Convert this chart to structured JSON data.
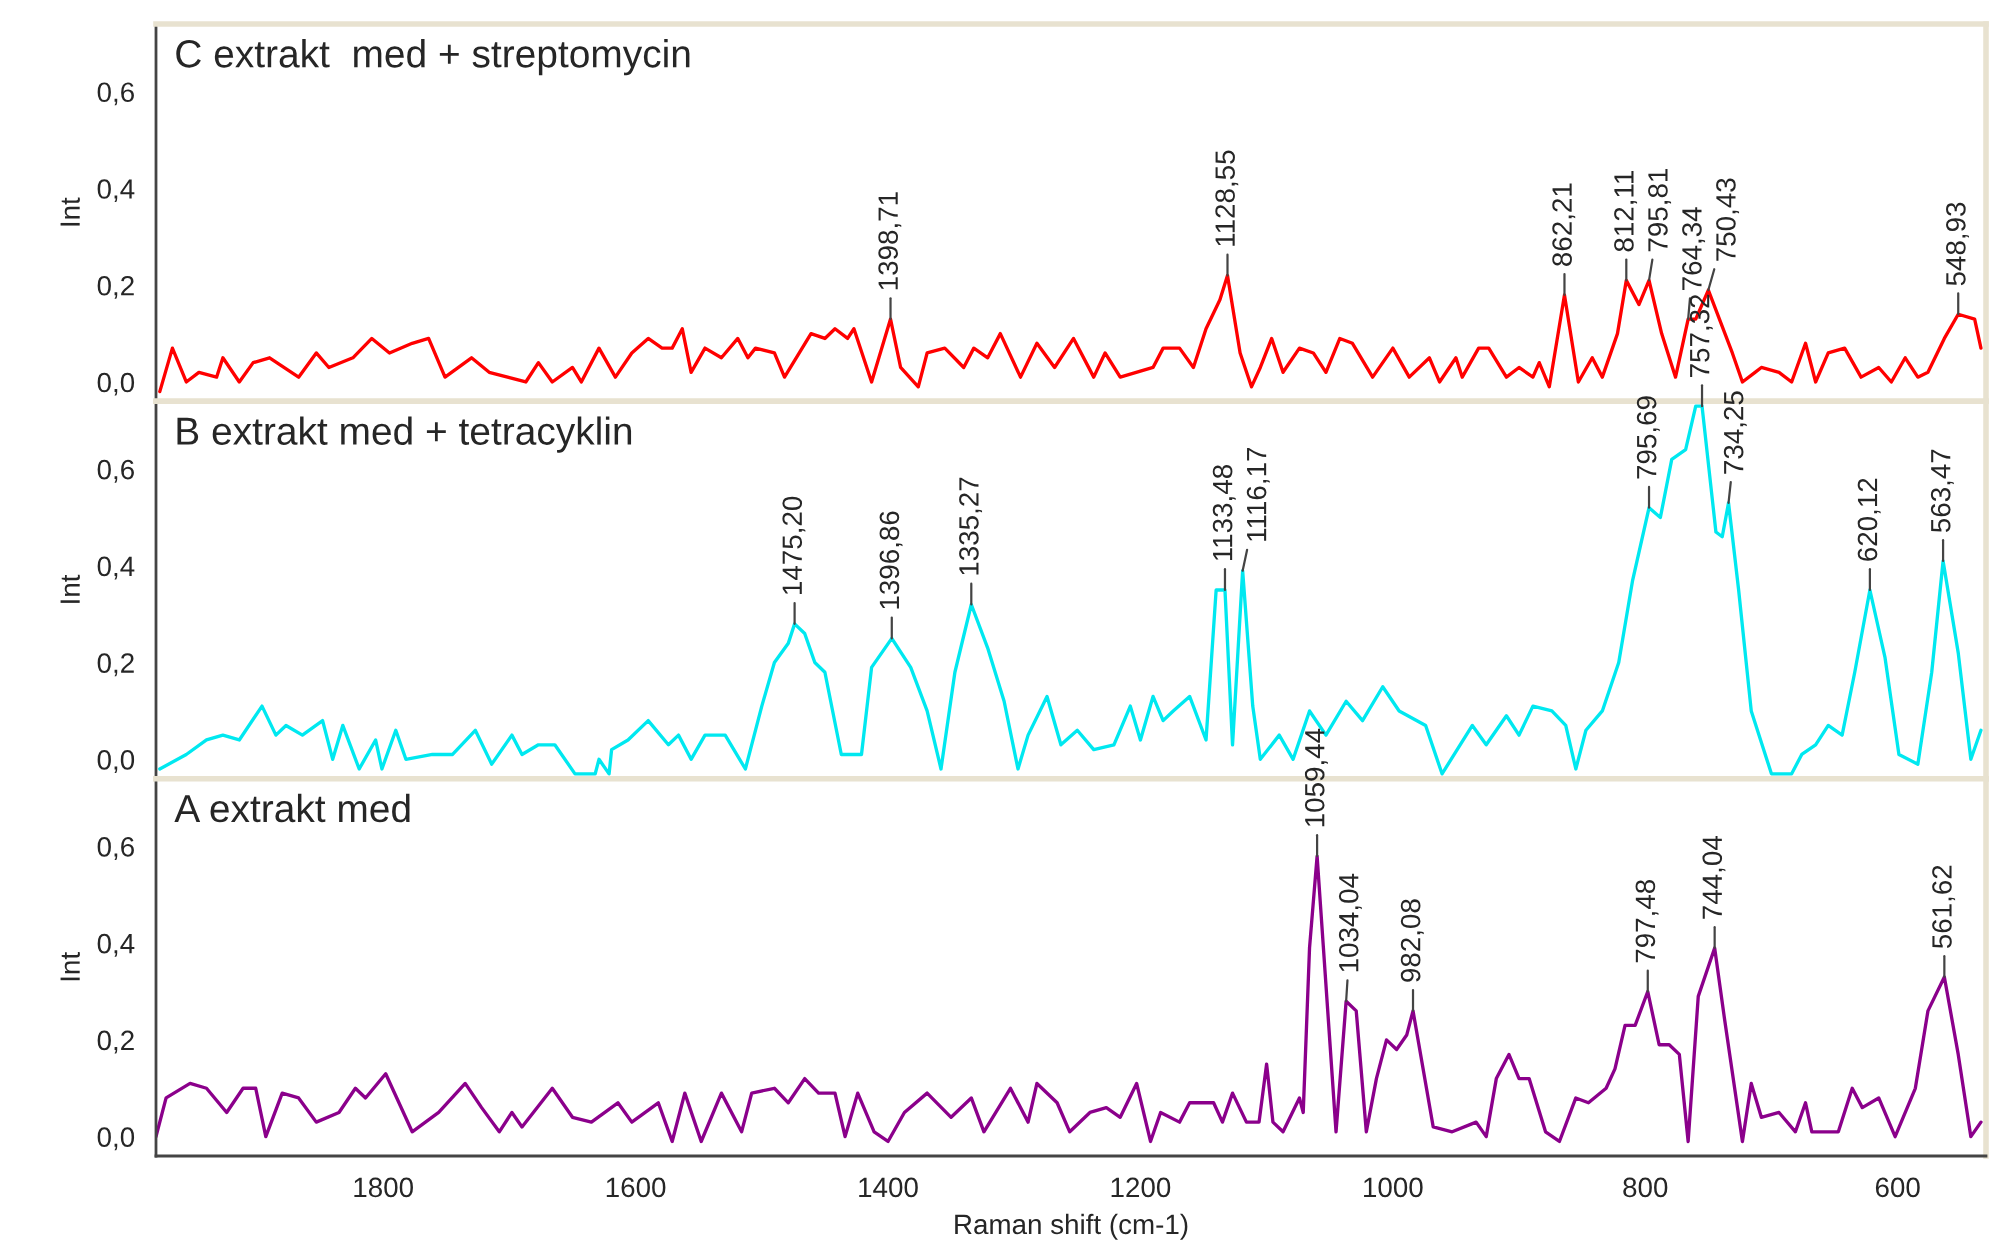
{
  "chart_data": [
    {
      "type": "line",
      "title": "C extrakt  med + streptomycin",
      "ylabel": "Int",
      "xlim": [
        1980,
        530
      ],
      "xticks": [
        1800,
        1600,
        1400,
        1200,
        1000,
        800,
        600
      ],
      "ylim": [
        -0.04,
        0.74
      ],
      "yticks": [
        {
          "value": 0,
          "label": "0,0"
        },
        {
          "value": 0.2,
          "label": "0,2"
        },
        {
          "value": 0.4,
          "label": "0,4"
        },
        {
          "value": 0.6,
          "label": "0,6"
        }
      ],
      "tick_labels": "y",
      "grid": false,
      "x": [
        1977,
        1967,
        1956,
        1946,
        1932,
        1927,
        1914,
        1903,
        1890,
        1867,
        1853,
        1843,
        1824,
        1809,
        1795,
        1777,
        1764,
        1751,
        1730,
        1716,
        1687,
        1677,
        1666,
        1650,
        1643,
        1629,
        1616,
        1603,
        1590,
        1579,
        1571,
        1563,
        1556,
        1545,
        1532,
        1519,
        1511,
        1505,
        1490,
        1482,
        1461,
        1450,
        1442,
        1432,
        1427,
        1413,
        1398,
        1390,
        1376,
        1369,
        1355,
        1340,
        1332,
        1321,
        1311,
        1295,
        1282,
        1268,
        1253,
        1237,
        1228,
        1216,
        1190,
        1182,
        1169,
        1158,
        1148,
        1137,
        1131,
        1121,
        1112,
        1105,
        1096,
        1087,
        1074,
        1063,
        1053,
        1042,
        1032,
        1016,
        1000,
        987,
        971,
        963,
        950,
        945,
        932,
        924,
        910,
        900,
        889,
        884,
        876,
        864,
        853,
        842,
        834,
        822,
        815,
        805,
        797,
        787,
        776,
        766,
        760,
        750,
        731,
        723,
        713,
        708,
        694,
        684,
        673,
        665,
        655,
        642,
        629,
        615,
        605,
        594,
        584,
        576,
        563,
        552,
        539,
        534
      ],
      "series": [
        {
          "color": "#ff0000",
          "values": [
            -0.02,
            0.07,
            0.0,
            0.02,
            0.01,
            0.05,
            0.0,
            0.04,
            0.05,
            0.01,
            0.06,
            0.03,
            0.05,
            0.09,
            0.06,
            0.08,
            0.09,
            0.01,
            0.05,
            0.02,
            0.0,
            0.04,
            0.0,
            0.03,
            0.0,
            0.07,
            0.01,
            0.06,
            0.09,
            0.07,
            0.07,
            0.11,
            0.02,
            0.07,
            0.05,
            0.09,
            0.05,
            0.07,
            0.06,
            0.01,
            0.1,
            0.09,
            0.11,
            0.09,
            0.11,
            0.0,
            0.13,
            0.03,
            -0.01,
            0.06,
            0.07,
            0.03,
            0.07,
            0.05,
            0.1,
            0.01,
            0.08,
            0.03,
            0.09,
            0.01,
            0.06,
            0.01,
            0.03,
            0.07,
            0.07,
            0.03,
            0.11,
            0.17,
            0.22,
            0.06,
            -0.01,
            0.03,
            0.09,
            0.02,
            0.07,
            0.06,
            0.02,
            0.09,
            0.08,
            0.01,
            0.07,
            0.01,
            0.05,
            0.0,
            0.05,
            0.01,
            0.07,
            0.07,
            0.01,
            0.03,
            0.01,
            0.04,
            -0.01,
            0.18,
            0.0,
            0.05,
            0.01,
            0.1,
            0.21,
            0.16,
            0.21,
            0.1,
            0.01,
            0.13,
            0.13,
            0.19,
            0.06,
            0.0,
            0.02,
            0.03,
            0.02,
            0.0,
            0.08,
            0.0,
            0.06,
            0.07,
            0.01,
            0.03,
            0.0,
            0.05,
            0.01,
            0.02,
            0.09,
            0.14,
            0.13,
            0.07
          ]
        }
      ],
      "annotations": [
        {
          "text": "1398,71",
          "x": 1398,
          "y": 0.13
        },
        {
          "text": "1128,55",
          "x": 1131,
          "y": 0.22
        },
        {
          "text": "862,21",
          "x": 864,
          "y": 0.18
        },
        {
          "text": "812,11",
          "x": 815,
          "y": 0.21
        },
        {
          "text": "795,81",
          "x": 797,
          "y": 0.21
        },
        {
          "text": "764,34",
          "x": 766,
          "y": 0.13
        },
        {
          "text": "750,43",
          "x": 750,
          "y": 0.19
        },
        {
          "text": "548,93",
          "x": 552,
          "y": 0.14
        }
      ]
    },
    {
      "type": "line",
      "title": "B extrakt med + tetracyklin",
      "ylabel": "Int",
      "xlim": [
        1980,
        530
      ],
      "xticks": [
        1800,
        1600,
        1400,
        1200,
        1000,
        800,
        600
      ],
      "ylim": [
        -0.04,
        0.74
      ],
      "yticks": [
        {
          "value": 0,
          "label": "0,0"
        },
        {
          "value": 0.2,
          "label": "0,2"
        },
        {
          "value": 0.4,
          "label": "0,4"
        },
        {
          "value": 0.6,
          "label": "0,6"
        }
      ],
      "tick_labels": "y",
      "grid": false,
      "x": [
        1977,
        1956,
        1940,
        1927,
        1914,
        1896,
        1885,
        1877,
        1864,
        1848,
        1840,
        1832,
        1819,
        1806,
        1801,
        1790,
        1782,
        1761,
        1745,
        1727,
        1714,
        1698,
        1690,
        1677,
        1664,
        1648,
        1632,
        1629,
        1621,
        1619,
        1606,
        1590,
        1574,
        1566,
        1556,
        1545,
        1529,
        1513,
        1500,
        1490,
        1479,
        1474,
        1466,
        1458,
        1450,
        1437,
        1421,
        1413,
        1397,
        1382,
        1369,
        1358,
        1347,
        1334,
        1321,
        1308,
        1297,
        1289,
        1274,
        1263,
        1250,
        1237,
        1221,
        1208,
        1200,
        1190,
        1182,
        1174,
        1161,
        1148,
        1140,
        1133,
        1127,
        1119,
        1111,
        1105,
        1090,
        1079,
        1066,
        1053,
        1037,
        1024,
        1008,
        995,
        974,
        961,
        937,
        926,
        910,
        900,
        889,
        874,
        863,
        855,
        847,
        834,
        821,
        810,
        797,
        788,
        779,
        768,
        760,
        755,
        744,
        739,
        734,
        726,
        716,
        700,
        684,
        676,
        665,
        655,
        644,
        634,
        622,
        610,
        599,
        584,
        573,
        564,
        552,
        542,
        534
      ],
      "series": [
        {
          "color": "#00e8f0",
          "values": [
            -0.02,
            0.01,
            0.04,
            0.05,
            0.04,
            0.11,
            0.05,
            0.07,
            0.05,
            0.08,
            0.0,
            0.07,
            -0.02,
            0.04,
            -0.02,
            0.06,
            0.0,
            0.01,
            0.01,
            0.06,
            -0.01,
            0.05,
            0.01,
            0.03,
            0.03,
            -0.03,
            -0.03,
            0.0,
            -0.03,
            0.02,
            0.04,
            0.08,
            0.03,
            0.05,
            0.0,
            0.05,
            0.05,
            -0.02,
            0.11,
            0.2,
            0.24,
            0.28,
            0.26,
            0.2,
            0.18,
            0.01,
            0.01,
            0.19,
            0.25,
            0.19,
            0.1,
            -0.02,
            0.18,
            0.32,
            0.23,
            0.12,
            -0.02,
            0.05,
            0.13,
            0.03,
            0.06,
            0.02,
            0.03,
            0.11,
            0.04,
            0.13,
            0.08,
            0.1,
            0.13,
            0.04,
            0.35,
            0.35,
            0.03,
            0.39,
            0.11,
            0.0,
            0.05,
            0.0,
            0.1,
            0.05,
            0.12,
            0.08,
            0.15,
            0.1,
            0.07,
            -0.03,
            0.07,
            0.03,
            0.09,
            0.05,
            0.11,
            0.1,
            0.07,
            -0.02,
            0.06,
            0.1,
            0.2,
            0.37,
            0.52,
            0.5,
            0.62,
            0.64,
            0.73,
            0.73,
            0.47,
            0.46,
            0.53,
            0.35,
            0.1,
            -0.03,
            -0.03,
            0.01,
            0.03,
            0.07,
            0.05,
            0.18,
            0.35,
            0.21,
            0.01,
            -0.01,
            0.18,
            0.41,
            0.22,
            0.0,
            0.06
          ]
        }
      ],
      "annotations": [
        {
          "text": "1475,20",
          "x": 1474,
          "y": 0.28
        },
        {
          "text": "1396,86",
          "x": 1397,
          "y": 0.25
        },
        {
          "text": "1335,27",
          "x": 1334,
          "y": 0.32
        },
        {
          "text": "1133,48",
          "x": 1133,
          "y": 0.35
        },
        {
          "text": "1116,17",
          "x": 1119,
          "y": 0.39
        },
        {
          "text": "795,69",
          "x": 797,
          "y": 0.52
        },
        {
          "text": "757,32",
          "x": 755,
          "y": 0.73
        },
        {
          "text": "734,25",
          "x": 734,
          "y": 0.53
        },
        {
          "text": "620,12",
          "x": 622,
          "y": 0.35
        },
        {
          "text": "563,47",
          "x": 564,
          "y": 0.41
        }
      ]
    },
    {
      "type": "line",
      "title": "A extrakt med",
      "ylabel": "Int",
      "xlabel": "Raman shift (cm-1)",
      "xlim": [
        1980,
        530
      ],
      "xticks": [
        1800,
        1600,
        1400,
        1200,
        1000,
        800,
        600
      ],
      "ylim": [
        -0.04,
        0.74
      ],
      "yticks": [
        {
          "value": 0,
          "label": "0,0"
        },
        {
          "value": 0.2,
          "label": "0,2"
        },
        {
          "value": 0.4,
          "label": "0,4"
        },
        {
          "value": 0.6,
          "label": "0,6"
        }
      ],
      "grid": false,
      "x": [
        1980,
        1972,
        1953,
        1940,
        1924,
        1911,
        1901,
        1893,
        1880,
        1867,
        1853,
        1835,
        1822,
        1814,
        1798,
        1777,
        1756,
        1735,
        1722,
        1708,
        1698,
        1690,
        1666,
        1650,
        1635,
        1614,
        1603,
        1582,
        1571,
        1561,
        1548,
        1532,
        1516,
        1508,
        1490,
        1479,
        1466,
        1455,
        1442,
        1434,
        1424,
        1411,
        1400,
        1387,
        1369,
        1350,
        1334,
        1324,
        1303,
        1289,
        1282,
        1266,
        1256,
        1240,
        1227,
        1216,
        1203,
        1192,
        1184,
        1169,
        1161,
        1142,
        1135,
        1127,
        1116,
        1106,
        1100,
        1095,
        1087,
        1074,
        1071,
        1066,
        1060,
        1055,
        1045,
        1037,
        1029,
        1021,
        1013,
        1005,
        997,
        989,
        984,
        968,
        953,
        934,
        926,
        918,
        908,
        900,
        892,
        879,
        868,
        855,
        845,
        831,
        824,
        816,
        808,
        798,
        789,
        781,
        773,
        766,
        758,
        745,
        737,
        723,
        716,
        708,
        694,
        681,
        673,
        668,
        647,
        636,
        628,
        615,
        602,
        586,
        576,
        563,
        552,
        542,
        534
      ],
      "series": [
        {
          "color": "#8b008b",
          "values": [
            0.0,
            0.08,
            0.11,
            0.1,
            0.05,
            0.1,
            0.1,
            0.0,
            0.09,
            0.08,
            0.03,
            0.05,
            0.1,
            0.08,
            0.13,
            0.01,
            0.05,
            0.11,
            0.06,
            0.01,
            0.05,
            0.02,
            0.1,
            0.04,
            0.03,
            0.07,
            0.03,
            0.07,
            -0.01,
            0.09,
            -0.01,
            0.09,
            0.01,
            0.09,
            0.1,
            0.07,
            0.12,
            0.09,
            0.09,
            0.0,
            0.09,
            0.01,
            -0.01,
            0.05,
            0.09,
            0.04,
            0.08,
            0.01,
            0.1,
            0.03,
            0.11,
            0.07,
            0.01,
            0.05,
            0.06,
            0.04,
            0.11,
            -0.01,
            0.05,
            0.03,
            0.07,
            0.07,
            0.03,
            0.09,
            0.03,
            0.03,
            0.15,
            0.03,
            0.01,
            0.08,
            0.05,
            0.39,
            0.58,
            0.39,
            0.01,
            0.28,
            0.26,
            0.01,
            0.12,
            0.2,
            0.18,
            0.21,
            0.26,
            0.02,
            0.01,
            0.03,
            0.0,
            0.12,
            0.17,
            0.12,
            0.12,
            0.01,
            -0.01,
            0.08,
            0.07,
            0.1,
            0.14,
            0.23,
            0.23,
            0.3,
            0.19,
            0.19,
            0.17,
            -0.01,
            0.29,
            0.39,
            0.24,
            -0.01,
            0.11,
            0.04,
            0.05,
            0.01,
            0.07,
            0.01,
            0.01,
            0.1,
            0.06,
            0.08,
            0.0,
            0.1,
            0.26,
            0.33,
            0.17,
            0.0,
            0.03
          ]
        }
      ],
      "annotations": [
        {
          "text": "1059,44",
          "x": 1060,
          "y": 0.58
        },
        {
          "text": "1034,04",
          "x": 1037,
          "y": 0.28
        },
        {
          "text": "982,08",
          "x": 984,
          "y": 0.26
        },
        {
          "text": "797,48",
          "x": 798,
          "y": 0.3
        },
        {
          "text": "744,04",
          "x": 745,
          "y": 0.39
        },
        {
          "text": "561,62",
          "x": 563,
          "y": 0.33
        }
      ]
    }
  ]
}
